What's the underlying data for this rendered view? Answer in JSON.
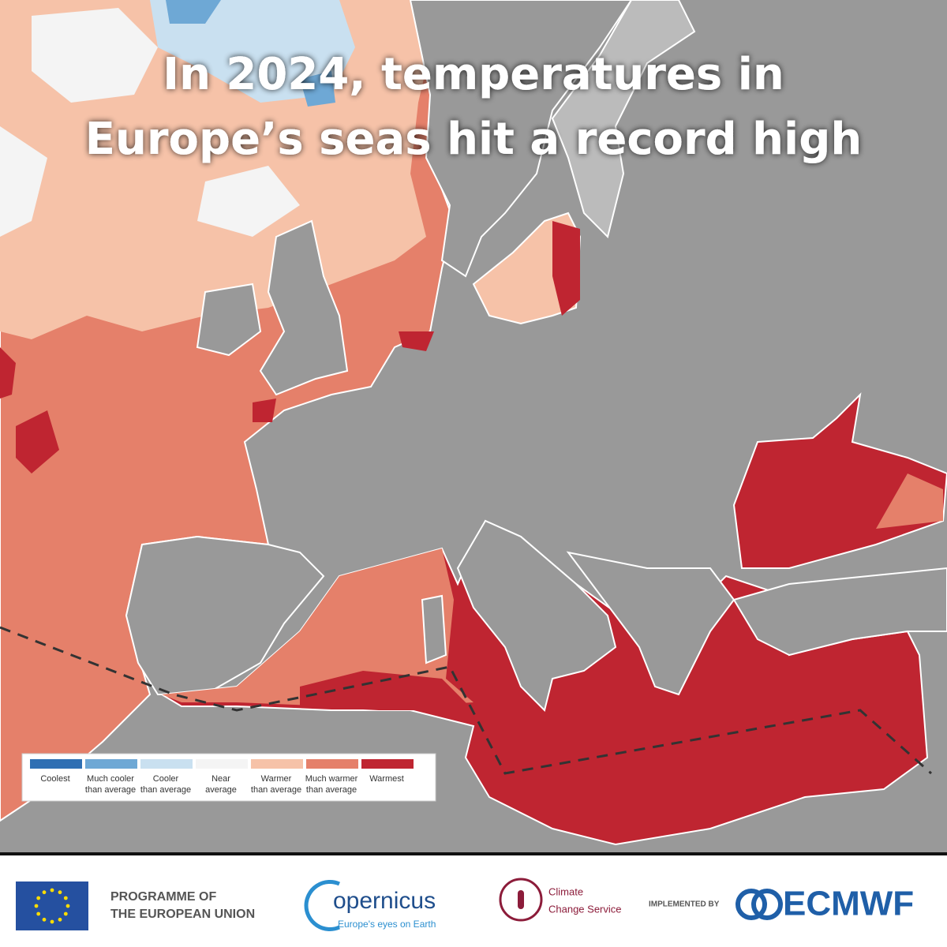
{
  "title": [
    "In 2024, temperatures in",
    "Europe’s seas hit a record high"
  ],
  "legend": [
    {
      "label": [
        "Coolest"
      ],
      "color": "#2f6fb3"
    },
    {
      "label": [
        "Much cooler",
        "than average"
      ],
      "color": "#6ea8d5"
    },
    {
      "label": [
        "Cooler",
        "than average"
      ],
      "color": "#c9e0f0"
    },
    {
      "label": [
        "Near",
        "average"
      ],
      "color": "#f4f4f4"
    },
    {
      "label": [
        "Warmer",
        "than average"
      ],
      "color": "#f6c2a8"
    },
    {
      "label": [
        "Much warmer",
        "than average"
      ],
      "color": "#e5806a"
    },
    {
      "label": [
        "Warmest"
      ],
      "color": "#bf2531"
    }
  ],
  "footer": {
    "eu": [
      "PROGRAMME OF",
      "THE EUROPEAN UNION"
    ],
    "copernicus": {
      "name": "opernicus",
      "tagline": "Europe's eyes on Earth"
    },
    "c3s": [
      "Climate",
      "Change Service"
    ],
    "implemented_by": "IMPLEMENTED BY",
    "ecmwf": "ECMWF"
  }
}
